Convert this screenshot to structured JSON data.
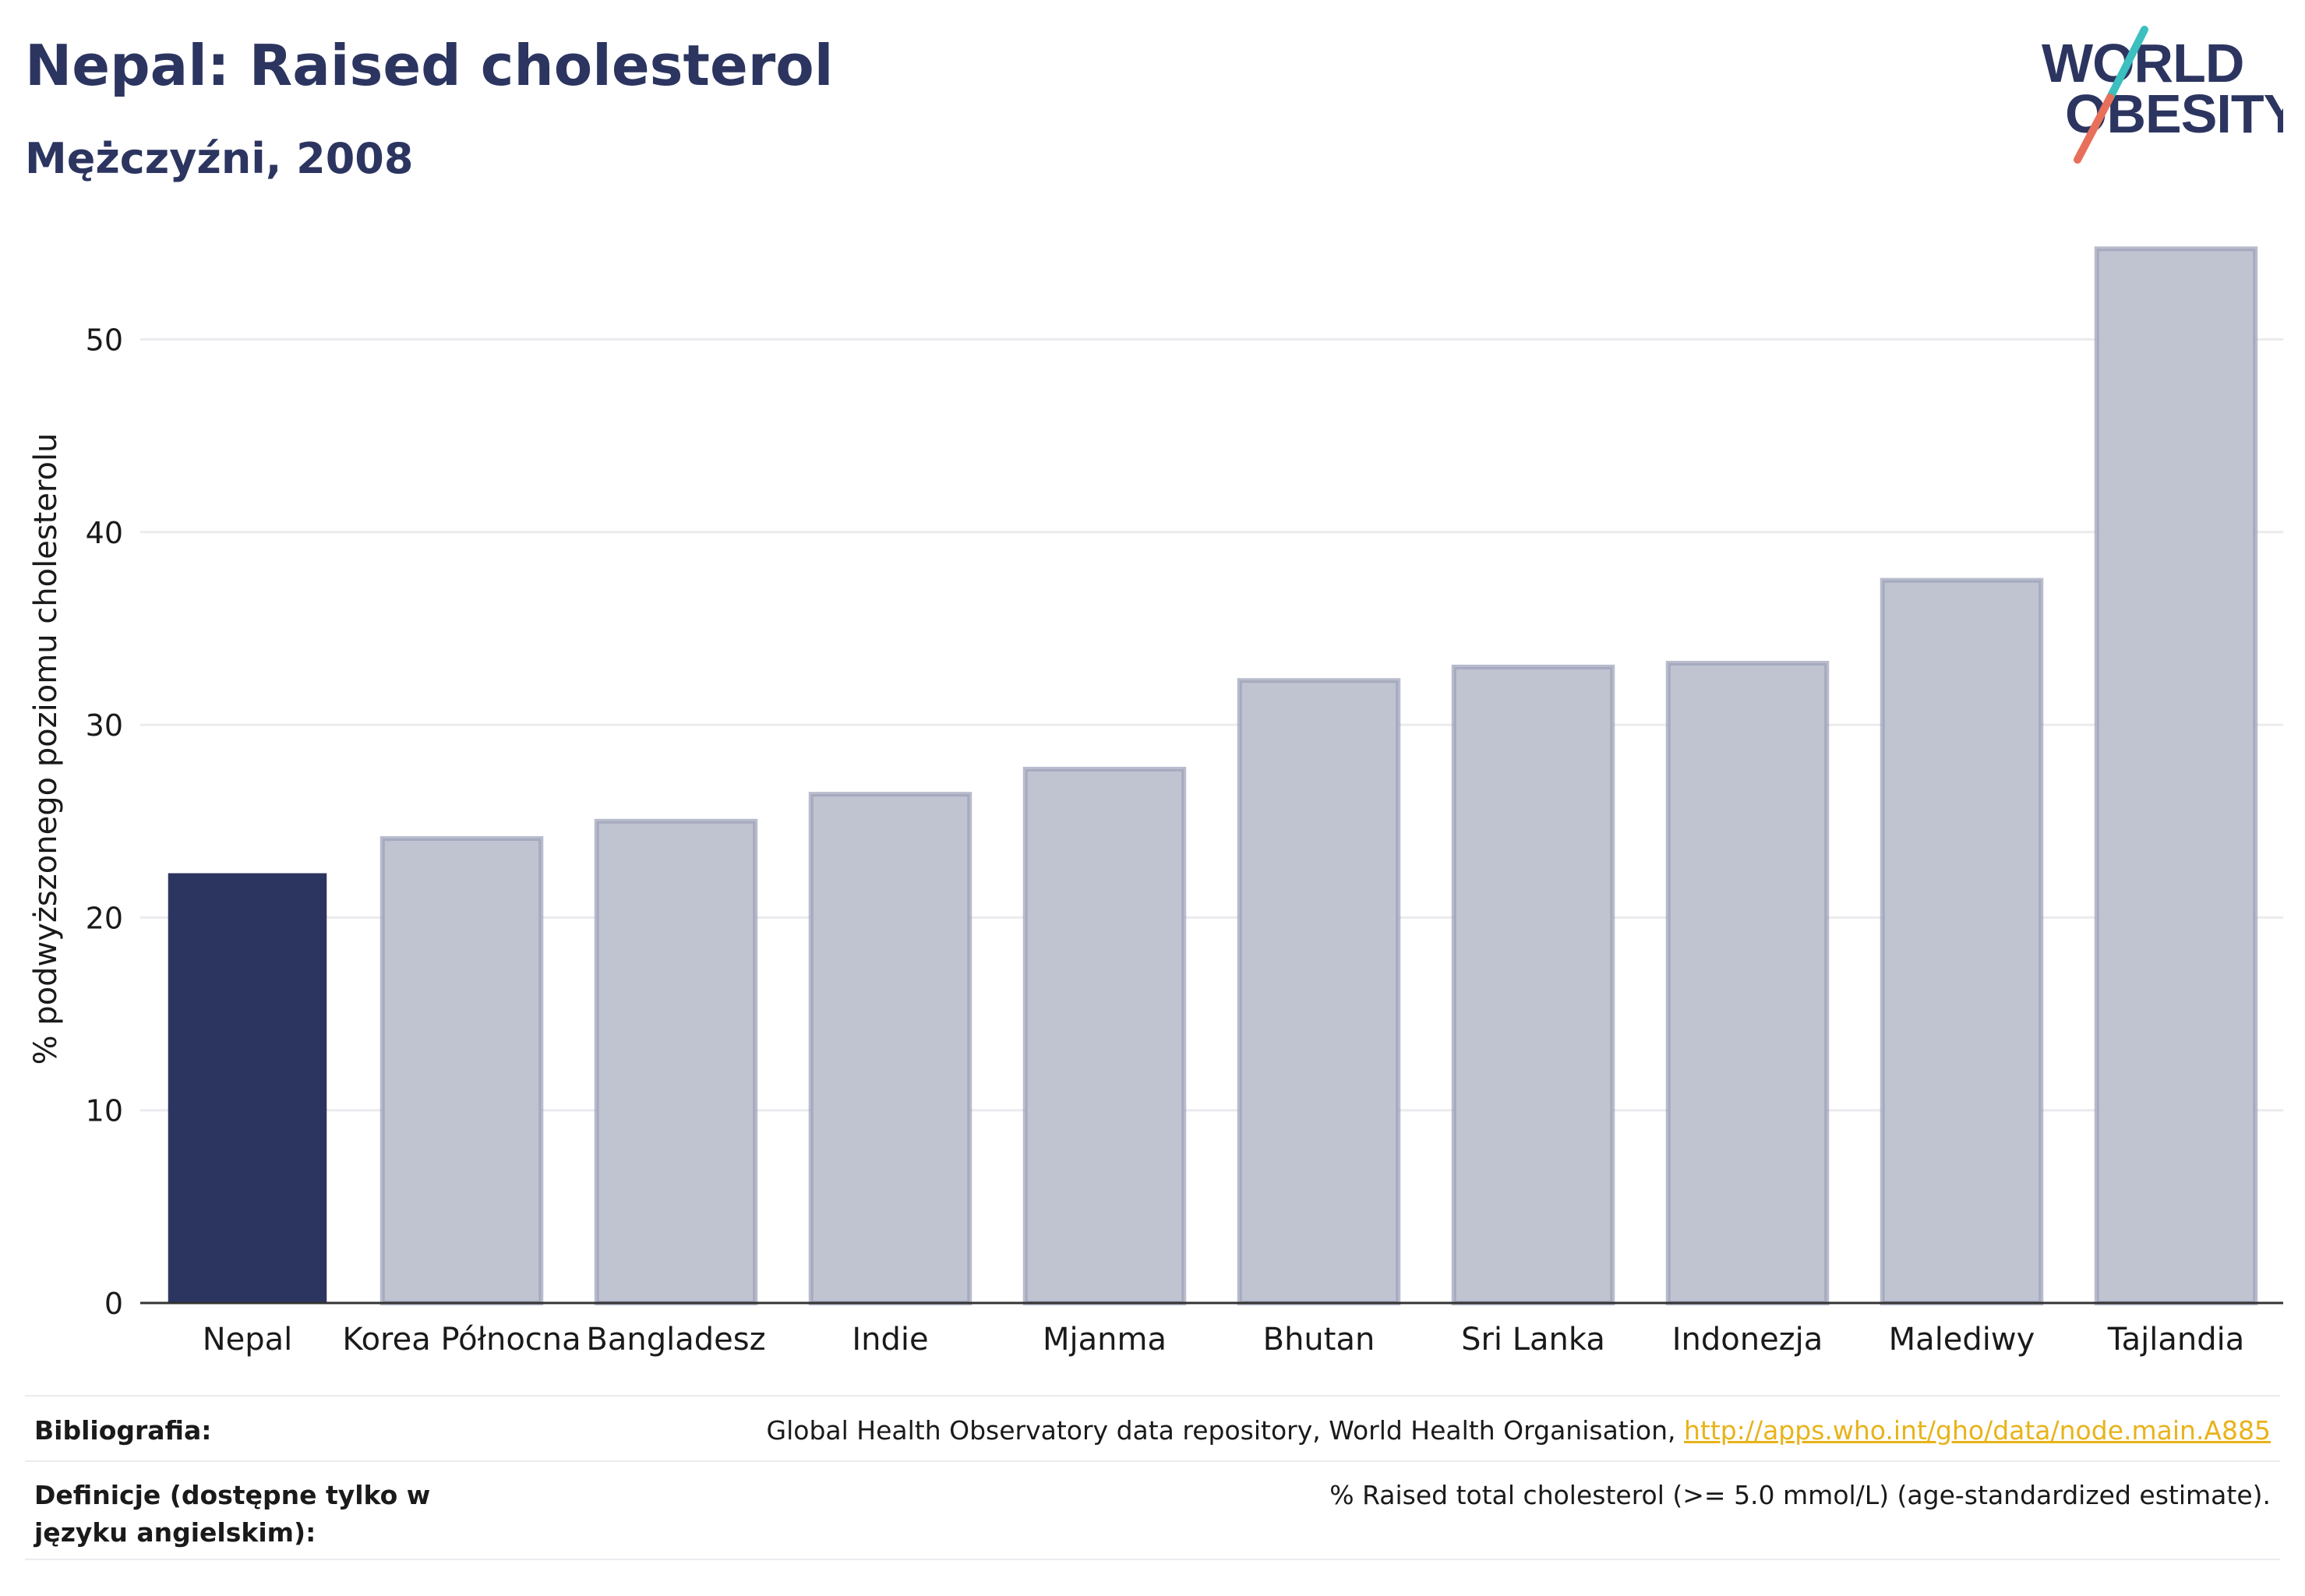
{
  "header": {
    "title": "Nepal: Raised cholesterol",
    "subtitle": "Mężczyźni, 2008"
  },
  "logo": {
    "line1": "WORLD",
    "line2": "OBESITY",
    "colors": {
      "text": "#2c3560",
      "slash_top": "#3bbfbf",
      "slash_bottom": "#e8705a"
    }
  },
  "chart_data": {
    "type": "bar",
    "categories": [
      "Nepal",
      "Korea Północna",
      "Bangladesz",
      "Indie",
      "Mjanma",
      "Bhutan",
      "Sri Lanka",
      "Indonezja",
      "Malediwy",
      "Tajlandia"
    ],
    "values": [
      22.3,
      24.1,
      25.0,
      26.4,
      27.7,
      32.3,
      33.0,
      33.2,
      37.5,
      54.7
    ],
    "highlight": "Nepal",
    "ylabel": "% podwyższonego poziomu cholesterolu",
    "yticks": [
      0,
      10,
      20,
      30,
      40,
      50
    ],
    "ylim": [
      0,
      57.5
    ],
    "grid": true,
    "colors": {
      "highlight": "#2c3560",
      "other": "#c0c3d0",
      "other_border": "#9aa0b8",
      "grid": "#ebebef",
      "axis": "#333333"
    }
  },
  "footer": {
    "source_label": "Bibliografia:",
    "source_text": "Global Health Observatory data repository, World Health Organisation, ",
    "source_link": "http://apps.who.int/gho/data/node.main.A885",
    "definition_label": "Definicje (dostępne tylko w języku angielskim):",
    "definition_text": "% Raised total cholesterol (>= 5.0 mmol/L) (age-standardized estimate)."
  }
}
